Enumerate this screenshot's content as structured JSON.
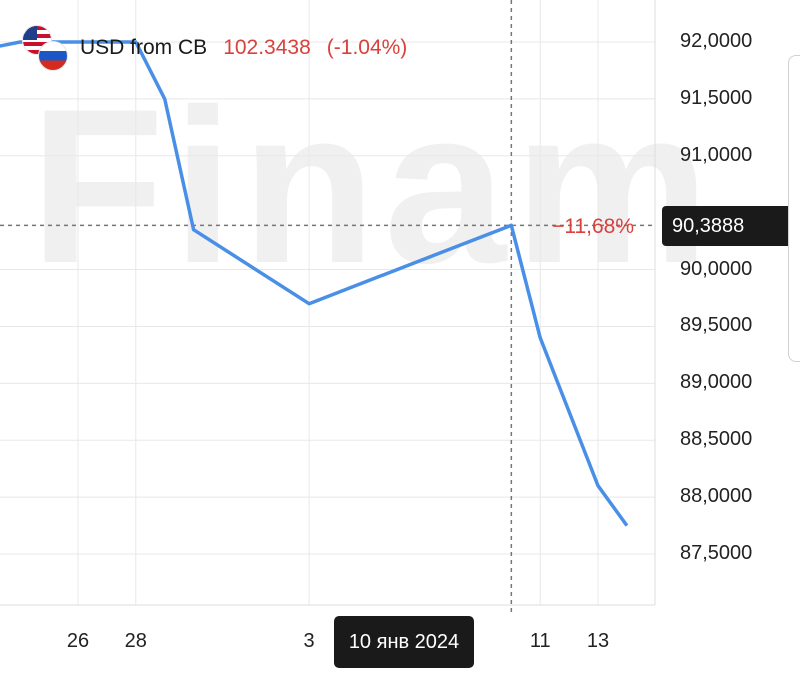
{
  "watermark": "Finam",
  "header": {
    "ticker": "USD from CB",
    "price": "102.3438",
    "change": "(-1.04%)",
    "flag_top": "us-flag-icon",
    "flag_bottom": "ru-flag-icon"
  },
  "crosshair": {
    "percent_label": "−11,68%",
    "price_badge": "90,3888",
    "date_badge": "10 янв 2024"
  },
  "colors": {
    "line": "#4a8fe7",
    "negative": "#d9413c",
    "grid": "#e8e8e8",
    "badge_bg": "#1a1a1a"
  },
  "chart_data": {
    "type": "line",
    "y_ticks": [
      "92,0000",
      "91,5000",
      "91,0000",
      "90,0000",
      "89,5000",
      "89,0000",
      "88,5000",
      "88,0000",
      "87,5000"
    ],
    "x_ticks": [
      {
        "label": "26",
        "date": "2023-12-26"
      },
      {
        "label": "28",
        "date": "2023-12-28"
      },
      {
        "label": "3",
        "date": "2024-01-03"
      },
      {
        "label": "11",
        "date": "2024-01-11"
      },
      {
        "label": "13",
        "date": "2024-01-13"
      }
    ],
    "ylim": [
      87.4,
      92.1
    ],
    "grid": true,
    "series": [
      {
        "points": [
          {
            "x": "2023-12-23",
            "y": 91.95
          },
          {
            "x": "2023-12-24",
            "y": 92.0
          },
          {
            "x": "2023-12-27",
            "y": 92.0
          },
          {
            "x": "2023-12-28",
            "y": 92.0
          },
          {
            "x": "2023-12-29",
            "y": 91.5
          },
          {
            "x": "2023-12-30",
            "y": 90.35
          },
          {
            "x": "2024-01-03",
            "y": 89.7
          },
          {
            "x": "2024-01-10",
            "y": 90.3888
          },
          {
            "x": "2024-01-11",
            "y": 89.4
          },
          {
            "x": "2024-01-12",
            "y": 88.75
          },
          {
            "x": "2024-01-13",
            "y": 88.1
          },
          {
            "x": "2024-01-14",
            "y": 87.75
          }
        ]
      }
    ]
  }
}
